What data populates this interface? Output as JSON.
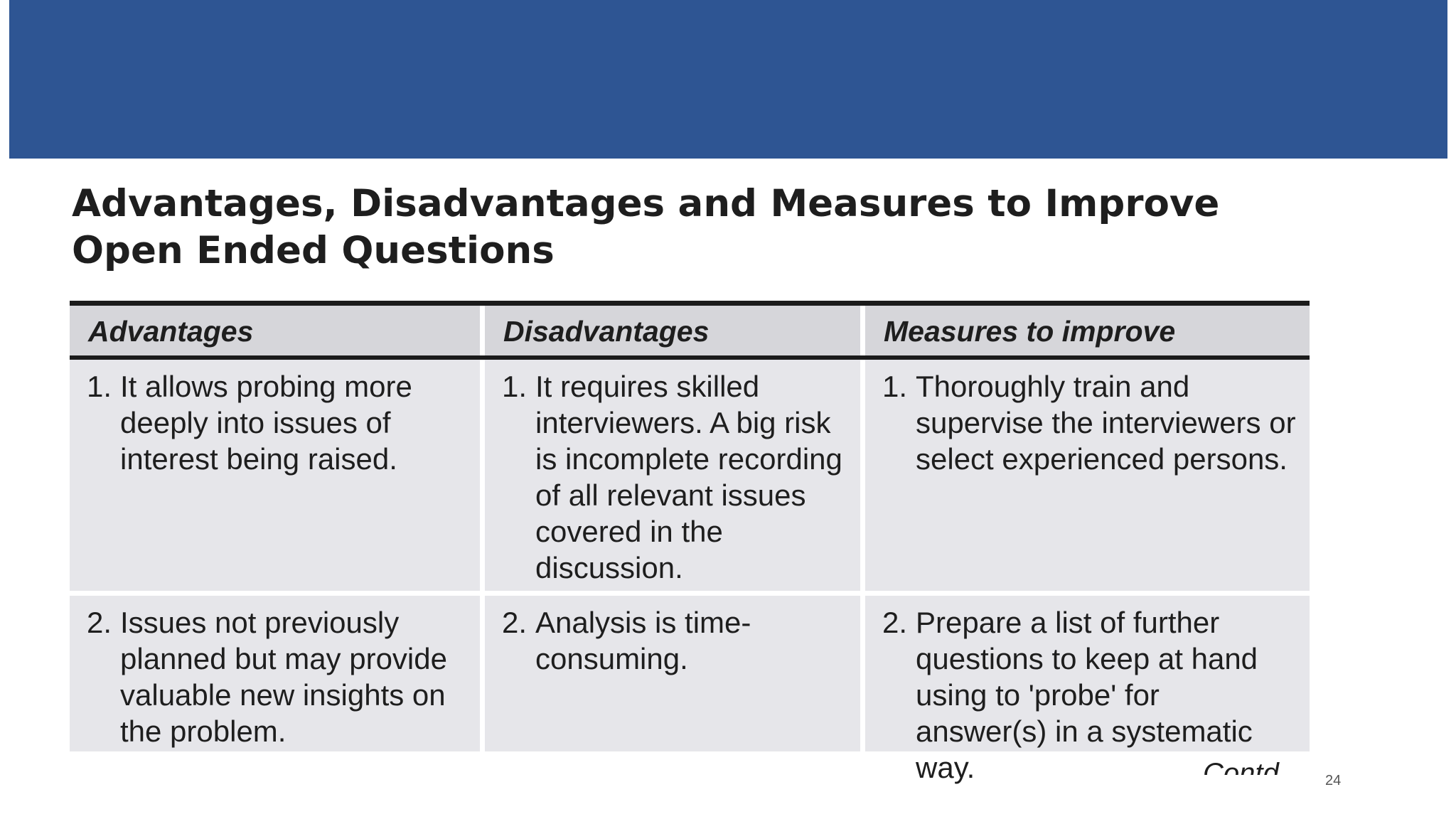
{
  "slide": {
    "title": "Advantages, Disadvantages and Measures to Improve Open Ended Questions",
    "continued_label": "Contd",
    "page_number": "24"
  },
  "table": {
    "headers": [
      "Advantages",
      "Disadvantages",
      "Measures to improve"
    ],
    "rows": [
      [
        {
          "number": "1.",
          "text": "It allows probing more deeply into issues of interest being raised."
        },
        {
          "number": "1.",
          "text": "It requires skilled interviewers. A big risk is incomplete recording of all relevant issues covered in the discussion."
        },
        {
          "number": "1.",
          "text": "Thoroughly train and supervise the interviewers or select experienced persons."
        }
      ],
      [
        {
          "number": "2.",
          "text": "Issues not previously planned but may provide valuable new insights on the problem."
        },
        {
          "number": "2.",
          "text": "Analysis is time-consuming."
        },
        {
          "number": "2.",
          "text": "Prepare a list of further questions to keep at hand using to 'probe' for answer(s) in a systematic way."
        }
      ]
    ]
  },
  "colors": {
    "header_band": "#2e5593",
    "table_header_bg": "#d6d6da",
    "table_cell_bg": "#e6e6ea",
    "rule": "#1b1b1b",
    "text": "#1e1e1e"
  }
}
